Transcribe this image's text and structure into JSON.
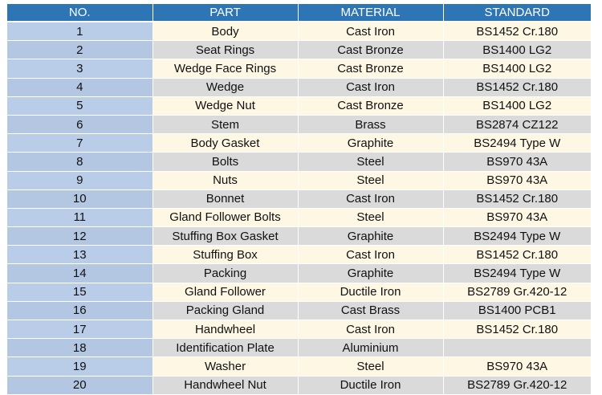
{
  "table": {
    "headers": [
      "NO.",
      "PART",
      "MATERIAL",
      "STANDARD"
    ],
    "rows": [
      [
        "1",
        "Body",
        "Cast Iron",
        "BS1452 Cr.180"
      ],
      [
        "2",
        "Seat Rings",
        "Cast Bronze",
        "BS1400 LG2"
      ],
      [
        "3",
        "Wedge Face Rings",
        "Cast Bronze",
        "BS1400 LG2"
      ],
      [
        "4",
        "Wedge",
        "Cast Iron",
        "BS1452 Cr.180"
      ],
      [
        "5",
        "Wedge Nut",
        "Cast Bronze",
        "BS1400 LG2"
      ],
      [
        "6",
        "Stem",
        "Brass",
        "BS2874 CZ122"
      ],
      [
        "7",
        "Body Gasket",
        "Graphite",
        "BS2494 Type W"
      ],
      [
        "8",
        "Bolts",
        "Steel",
        "BS970 43A"
      ],
      [
        "9",
        "Nuts",
        "Steel",
        "BS970 43A"
      ],
      [
        "10",
        "Bonnet",
        "Cast Iron",
        "BS1452 Cr.180"
      ],
      [
        "11",
        "Gland Follower Bolts",
        "Steel",
        "BS970 43A"
      ],
      [
        "12",
        "Stuffing Box Gasket",
        "Graphite",
        "BS2494 Type W"
      ],
      [
        "13",
        "Stuffing Box",
        "Cast Iron",
        "BS1452 Cr.180"
      ],
      [
        "14",
        "Packing",
        "Graphite",
        "BS2494 Type W"
      ],
      [
        "15",
        "Gland Follower",
        "Ductile Iron",
        "BS2789 Gr.420-12"
      ],
      [
        "16",
        "Packing Gland",
        "Cast Brass",
        "BS1400 PCB1"
      ],
      [
        "17",
        "Handwheel",
        "Cast Iron",
        "BS1452 Cr.180"
      ],
      [
        "18",
        "Identification Plate",
        "Aluminium",
        ""
      ],
      [
        "19",
        "Washer",
        "Steel",
        "BS970 43A"
      ],
      [
        "20",
        "Handwheel Nut",
        "Ductile Iron",
        "BS2789 Gr.420-12"
      ]
    ]
  },
  "colors": {
    "header_bg": "#2e75b6",
    "row_odd": "#fdf7e3",
    "row_even": "#dadada",
    "no_column": "#b9cde9"
  }
}
